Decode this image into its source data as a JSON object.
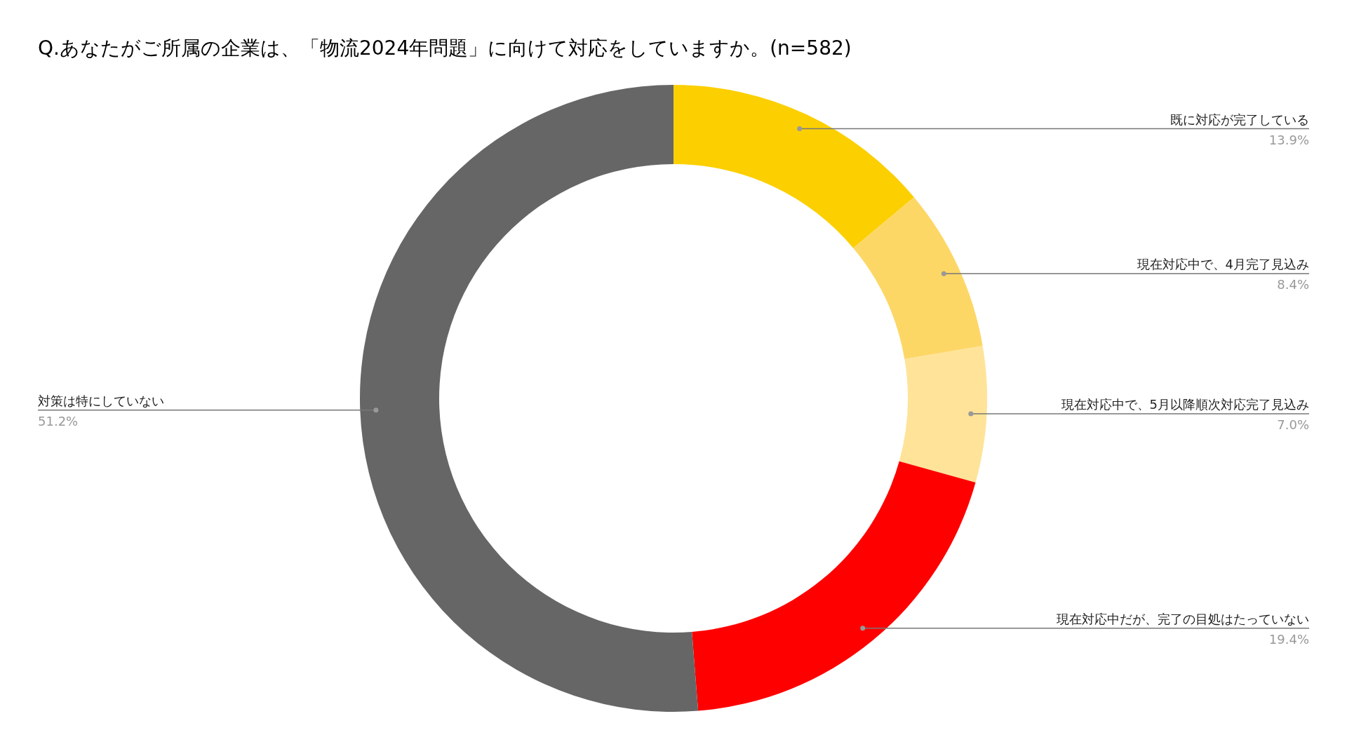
{
  "chart_data": {
    "type": "donut",
    "title": "Q.あなたがご所属の企業は、「物流2024年問題」に向けて対応をしていますか。(n=582)",
    "categories": [
      "既に対応が完了している",
      "現在対応中で、4月完了見込み",
      "現在対応中で、5月以降順次対応完了見込み",
      "現在対応中だが、完了の目処はたっていない",
      "対策は特にしていない"
    ],
    "values": [
      13.9,
      8.4,
      7.0,
      19.4,
      51.2
    ],
    "value_labels": [
      "13.9%",
      "8.4%",
      "7.0%",
      "19.4%",
      "51.2%"
    ],
    "colors": [
      "#fccf00",
      "#fdd766",
      "#fee399",
      "#ff0000",
      "#666666"
    ]
  }
}
